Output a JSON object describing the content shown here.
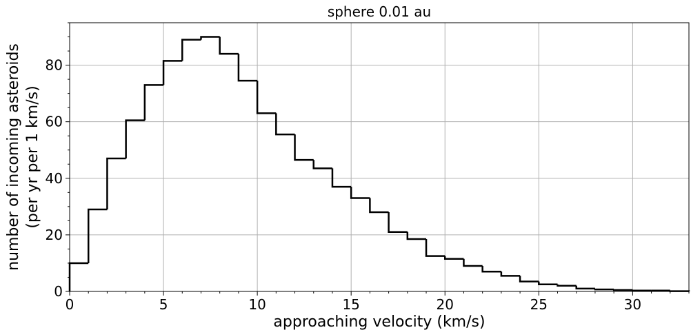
{
  "chart_data": {
    "type": "bar",
    "style": "step-histogram",
    "title": "sphere 0.01 au",
    "xlabel": "approaching velocity (km/s)",
    "ylabel_lines": [
      "number of incoming asteroids",
      "(per yr per 1 km/s)"
    ],
    "xlim": [
      0,
      33
    ],
    "ylim": [
      0,
      95
    ],
    "xticks": [
      0,
      5,
      10,
      15,
      20,
      25,
      30
    ],
    "yticks": [
      0,
      20,
      40,
      60,
      80
    ],
    "grid": true,
    "bin_width": 1,
    "bin_edges": [
      0,
      1,
      2,
      3,
      4,
      5,
      6,
      7,
      8,
      9,
      10,
      11,
      12,
      13,
      14,
      15,
      16,
      17,
      18,
      19,
      20,
      21,
      22,
      23,
      24,
      25,
      26,
      27,
      28,
      29,
      30,
      31,
      32,
      33
    ],
    "values": [
      10,
      29,
      47,
      60.5,
      73,
      81.5,
      89,
      90,
      84,
      74.5,
      63,
      55.5,
      46.5,
      43.5,
      37,
      33,
      28,
      21,
      18.5,
      12.5,
      11.5,
      9,
      7,
      5.5,
      3.5,
      2.5,
      2,
      1,
      0.7,
      0.5,
      0.3,
      0.3,
      0.1
    ],
    "line_color": "#000000",
    "grid_color": "#b0b0b0"
  }
}
